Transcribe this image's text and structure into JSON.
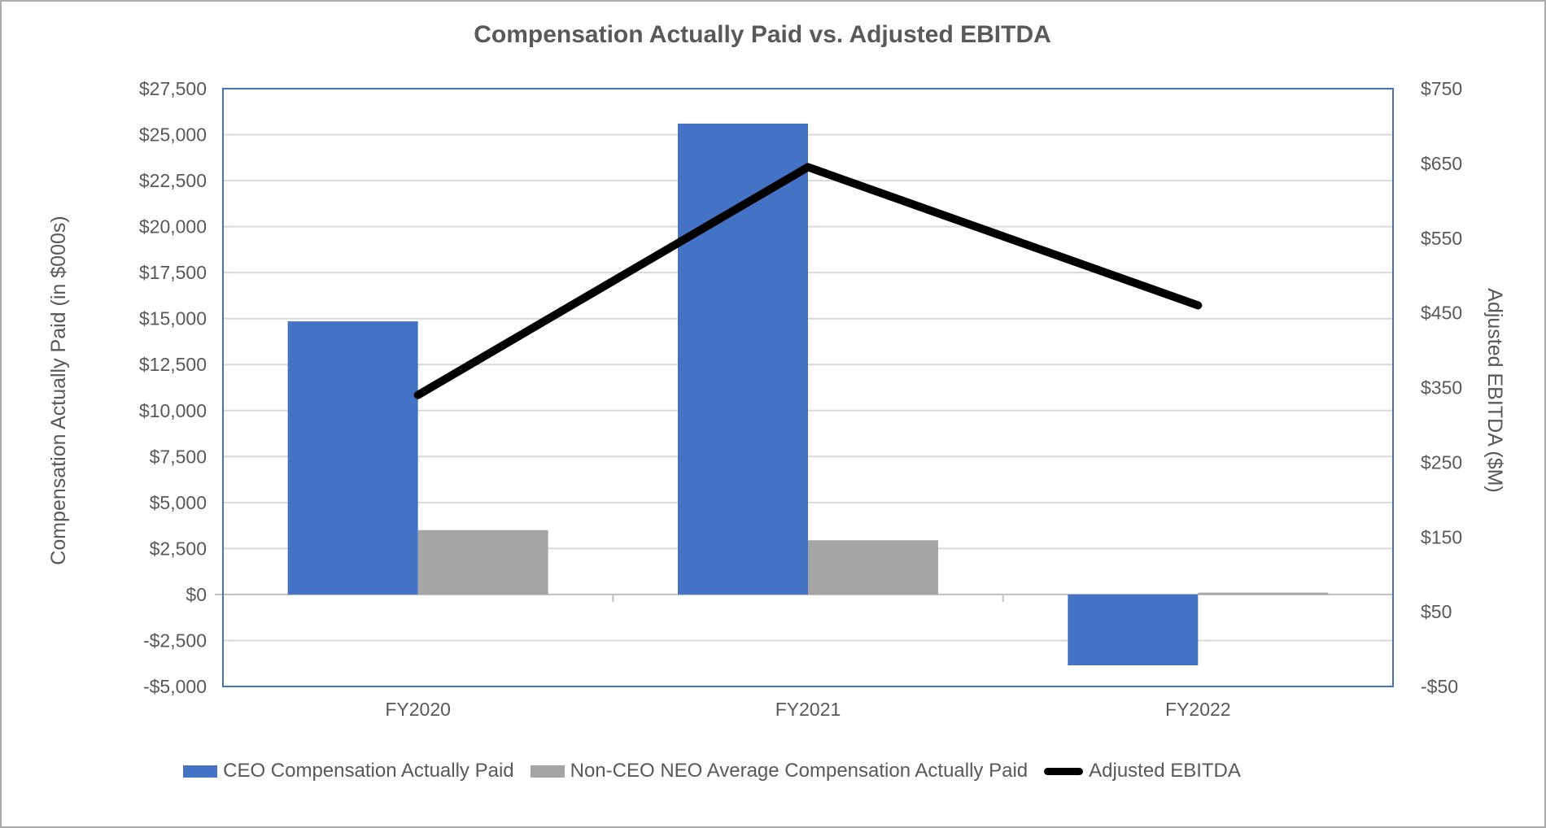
{
  "title": "Compensation Actually Paid vs. Adjusted EBITDA",
  "chart_data": {
    "type": "combo-bar-line",
    "title": "Compensation Actually Paid vs. Adjusted EBITDA",
    "categories": [
      "FY2020",
      "FY2021",
      "FY2022"
    ],
    "series": [
      {
        "name": "CEO Compensation Actually Paid",
        "kind": "bar",
        "axis": "left",
        "color": "#4472C4",
        "values": [
          14850,
          25600,
          -3850
        ]
      },
      {
        "name": "Non-CEO NEO Average Compensation Actually Paid",
        "kind": "bar",
        "axis": "left",
        "color": "#A5A5A5",
        "values": [
          3500,
          2950,
          100
        ]
      },
      {
        "name": "Adjusted EBITDA",
        "kind": "line",
        "axis": "right",
        "color": "#000000",
        "values": [
          340,
          645,
          460
        ]
      }
    ],
    "left_axis": {
      "title": "Compensation Actually Paid (in $000s)",
      "min": -5000,
      "max": 27500,
      "tick_step": 2500,
      "tick_values": [
        27500,
        25000,
        22500,
        20000,
        17500,
        15000,
        12500,
        10000,
        7500,
        5000,
        2500,
        0,
        -2500,
        -5000
      ],
      "tick_labels": [
        "$27,500",
        "$25,000",
        "$22,500",
        "$20,000",
        "$17,500",
        "$15,000",
        "$12,500",
        "$10,000",
        "$7,500",
        "$5,000",
        "$2,500",
        "$0",
        "-$2,500",
        "-$5,000"
      ]
    },
    "right_axis": {
      "title": "Adjusted EBITDA ($M)",
      "min": -50,
      "max": 750,
      "tick_step": 100,
      "tick_values": [
        750,
        650,
        550,
        450,
        350,
        250,
        150,
        50,
        -50
      ],
      "tick_labels": [
        "$750",
        "$650",
        "$550",
        "$450",
        "$350",
        "$250",
        "$150",
        "$50",
        "-$50"
      ]
    },
    "grid": "horizontal",
    "legend_position": "bottom"
  },
  "colors": {
    "bar_blue": "#4472C4",
    "bar_gray": "#A5A5A5",
    "line_black": "#000000",
    "grid_line": "#D9D9D9",
    "axis_line": "#BFBFBF",
    "plot_border": "#4472C4",
    "text": "#595959",
    "outer_border": "#ABABAB"
  }
}
